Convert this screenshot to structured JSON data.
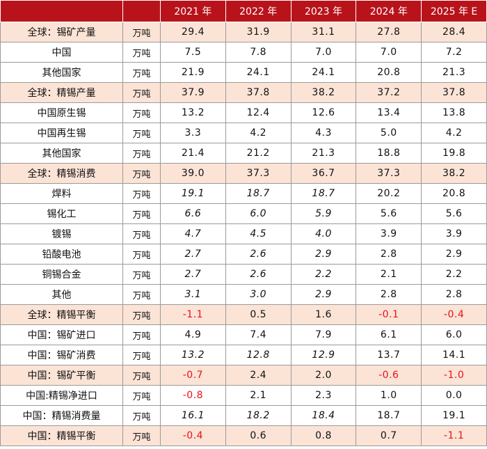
{
  "table": {
    "headers": [
      "2021 年",
      "2022 年",
      "2023 年",
      "2024 年",
      "2025 年 E"
    ],
    "rows": [
      {
        "name": "全球：锡矿产量",
        "unit": "万吨",
        "total": true,
        "values": [
          "29.4",
          "31.9",
          "31.1",
          "27.8",
          "28.4"
        ],
        "neg": [
          false,
          false,
          false,
          false,
          false
        ],
        "italic": [
          false,
          false,
          false,
          false,
          false
        ]
      },
      {
        "name": "中国",
        "unit": "万吨",
        "total": false,
        "values": [
          "7.5",
          "7.8",
          "7.0",
          "7.0",
          "7.2"
        ],
        "neg": [
          false,
          false,
          false,
          false,
          false
        ],
        "italic": [
          false,
          false,
          false,
          false,
          false
        ]
      },
      {
        "name": "其他国家",
        "unit": "万吨",
        "total": false,
        "values": [
          "21.9",
          "24.1",
          "24.1",
          "20.8",
          "21.3"
        ],
        "neg": [
          false,
          false,
          false,
          false,
          false
        ],
        "italic": [
          false,
          false,
          false,
          false,
          false
        ]
      },
      {
        "name": "全球：精锡产量",
        "unit": "万吨",
        "total": true,
        "values": [
          "37.9",
          "37.8",
          "38.2",
          "37.2",
          "37.8"
        ],
        "neg": [
          false,
          false,
          false,
          false,
          false
        ],
        "italic": [
          false,
          false,
          false,
          false,
          false
        ]
      },
      {
        "name": "中国原生锡",
        "unit": "万吨",
        "total": false,
        "values": [
          "13.2",
          "12.4",
          "12.6",
          "13.4",
          "13.8"
        ],
        "neg": [
          false,
          false,
          false,
          false,
          false
        ],
        "italic": [
          false,
          false,
          false,
          false,
          false
        ]
      },
      {
        "name": "中国再生锡",
        "unit": "万吨",
        "total": false,
        "values": [
          "3.3",
          "4.2",
          "4.3",
          "5.0",
          "4.2"
        ],
        "neg": [
          false,
          false,
          false,
          false,
          false
        ],
        "italic": [
          false,
          false,
          false,
          false,
          false
        ]
      },
      {
        "name": "其他国家",
        "unit": "万吨",
        "total": false,
        "values": [
          "21.4",
          "21.2",
          "21.3",
          "18.8",
          "19.8"
        ],
        "neg": [
          false,
          false,
          false,
          false,
          false
        ],
        "italic": [
          false,
          false,
          false,
          false,
          false
        ]
      },
      {
        "name": "全球：精锡消费",
        "unit": "万吨",
        "total": true,
        "values": [
          "39.0",
          "37.3",
          "36.7",
          "37.3",
          "38.2"
        ],
        "neg": [
          false,
          false,
          false,
          false,
          false
        ],
        "italic": [
          false,
          false,
          false,
          false,
          false
        ]
      },
      {
        "name": "焊料",
        "unit": "万吨",
        "total": false,
        "values": [
          "19.1",
          "18.7",
          "18.7",
          "20.2",
          "20.8"
        ],
        "neg": [
          false,
          false,
          false,
          false,
          false
        ],
        "italic": [
          true,
          true,
          true,
          false,
          false
        ]
      },
      {
        "name": "锡化工",
        "unit": "万吨",
        "total": false,
        "values": [
          "6.6",
          "6.0",
          "5.9",
          "5.6",
          "5.6"
        ],
        "neg": [
          false,
          false,
          false,
          false,
          false
        ],
        "italic": [
          true,
          true,
          true,
          false,
          false
        ]
      },
      {
        "name": "镀锡",
        "unit": "万吨",
        "total": false,
        "values": [
          "4.7",
          "4.5",
          "4.0",
          "3.9",
          "3.9"
        ],
        "neg": [
          false,
          false,
          false,
          false,
          false
        ],
        "italic": [
          true,
          true,
          true,
          false,
          false
        ]
      },
      {
        "name": "铅酸电池",
        "unit": "万吨",
        "total": false,
        "values": [
          "2.7",
          "2.6",
          "2.9",
          "2.8",
          "2.9"
        ],
        "neg": [
          false,
          false,
          false,
          false,
          false
        ],
        "italic": [
          true,
          true,
          true,
          false,
          false
        ]
      },
      {
        "name": "铜锡合金",
        "unit": "万吨",
        "total": false,
        "values": [
          "2.7",
          "2.6",
          "2.2",
          "2.1",
          "2.2"
        ],
        "neg": [
          false,
          false,
          false,
          false,
          false
        ],
        "italic": [
          true,
          true,
          true,
          false,
          false
        ]
      },
      {
        "name": "其他",
        "unit": "万吨",
        "total": false,
        "values": [
          "3.1",
          "3.0",
          "2.9",
          "2.8",
          "2.8"
        ],
        "neg": [
          false,
          false,
          false,
          false,
          false
        ],
        "italic": [
          true,
          true,
          true,
          false,
          false
        ]
      },
      {
        "name": "全球：精锡平衡",
        "unit": "万吨",
        "total": true,
        "values": [
          "-1.1",
          "0.5",
          "1.6",
          "-0.1",
          "-0.4"
        ],
        "neg": [
          true,
          false,
          false,
          true,
          true
        ],
        "italic": [
          false,
          false,
          false,
          false,
          false
        ]
      },
      {
        "name": "中国：锡矿进口",
        "unit": "万吨",
        "total": false,
        "values": [
          "4.9",
          "7.4",
          "7.9",
          "6.1",
          "6.0"
        ],
        "neg": [
          false,
          false,
          false,
          false,
          false
        ],
        "italic": [
          false,
          false,
          false,
          false,
          false
        ]
      },
      {
        "name": "中国：锡矿消费",
        "unit": "万吨",
        "total": false,
        "values": [
          "13.2",
          "12.8",
          "12.9",
          "13.7",
          "14.1"
        ],
        "neg": [
          false,
          false,
          false,
          false,
          false
        ],
        "italic": [
          true,
          true,
          true,
          false,
          false
        ]
      },
      {
        "name": "中国：锡矿平衡",
        "unit": "万吨",
        "total": true,
        "values": [
          "-0.7",
          "2.4",
          "2.0",
          "-0.6",
          "-1.0"
        ],
        "neg": [
          true,
          false,
          false,
          true,
          true
        ],
        "italic": [
          false,
          false,
          false,
          false,
          false
        ]
      },
      {
        "name": "中国:精锡净进口",
        "unit": "万吨",
        "total": false,
        "values": [
          "-0.8",
          "2.1",
          "2.3",
          "1.0",
          "0.0"
        ],
        "neg": [
          true,
          false,
          false,
          false,
          false
        ],
        "italic": [
          false,
          false,
          false,
          false,
          false
        ]
      },
      {
        "name": "中国：精锡消费量",
        "unit": "万吨",
        "total": false,
        "values": [
          "16.1",
          "18.2",
          "18.4",
          "18.7",
          "19.1"
        ],
        "neg": [
          false,
          false,
          false,
          false,
          false
        ],
        "italic": [
          true,
          true,
          true,
          false,
          false
        ]
      },
      {
        "name": "中国：精锡平衡",
        "unit": "万吨",
        "total": true,
        "values": [
          "-0.4",
          "0.6",
          "0.8",
          "0.7",
          "-1.1"
        ],
        "neg": [
          true,
          false,
          false,
          false,
          true
        ],
        "italic": [
          false,
          false,
          false,
          false,
          false
        ]
      }
    ]
  }
}
